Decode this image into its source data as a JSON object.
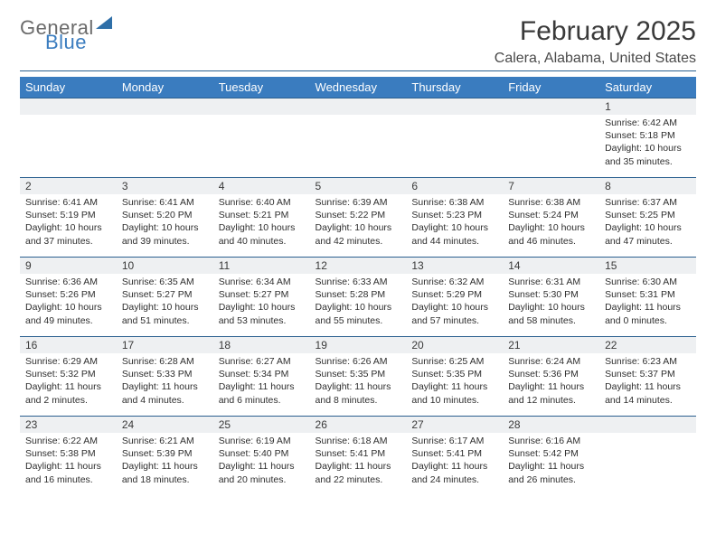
{
  "brand": {
    "line1": "General",
    "line2": "Blue"
  },
  "title": "February 2025",
  "location": "Calera, Alabama, United States",
  "colors": {
    "header_bg": "#3a7cbf",
    "header_text": "#ffffff",
    "rule": "#2a5f8f",
    "daynum_bg": "#eef0f2",
    "text": "#2e2e2e",
    "brand_gray": "#6b6b6b",
    "brand_blue": "#3a7cbf"
  },
  "weekdays": [
    "Sunday",
    "Monday",
    "Tuesday",
    "Wednesday",
    "Thursday",
    "Friday",
    "Saturday"
  ],
  "weeks": [
    [
      null,
      null,
      null,
      null,
      null,
      null,
      {
        "n": "1",
        "sunrise": "Sunrise: 6:42 AM",
        "sunset": "Sunset: 5:18 PM",
        "daylight": "Daylight: 10 hours and 35 minutes."
      }
    ],
    [
      {
        "n": "2",
        "sunrise": "Sunrise: 6:41 AM",
        "sunset": "Sunset: 5:19 PM",
        "daylight": "Daylight: 10 hours and 37 minutes."
      },
      {
        "n": "3",
        "sunrise": "Sunrise: 6:41 AM",
        "sunset": "Sunset: 5:20 PM",
        "daylight": "Daylight: 10 hours and 39 minutes."
      },
      {
        "n": "4",
        "sunrise": "Sunrise: 6:40 AM",
        "sunset": "Sunset: 5:21 PM",
        "daylight": "Daylight: 10 hours and 40 minutes."
      },
      {
        "n": "5",
        "sunrise": "Sunrise: 6:39 AM",
        "sunset": "Sunset: 5:22 PM",
        "daylight": "Daylight: 10 hours and 42 minutes."
      },
      {
        "n": "6",
        "sunrise": "Sunrise: 6:38 AM",
        "sunset": "Sunset: 5:23 PM",
        "daylight": "Daylight: 10 hours and 44 minutes."
      },
      {
        "n": "7",
        "sunrise": "Sunrise: 6:38 AM",
        "sunset": "Sunset: 5:24 PM",
        "daylight": "Daylight: 10 hours and 46 minutes."
      },
      {
        "n": "8",
        "sunrise": "Sunrise: 6:37 AM",
        "sunset": "Sunset: 5:25 PM",
        "daylight": "Daylight: 10 hours and 47 minutes."
      }
    ],
    [
      {
        "n": "9",
        "sunrise": "Sunrise: 6:36 AM",
        "sunset": "Sunset: 5:26 PM",
        "daylight": "Daylight: 10 hours and 49 minutes."
      },
      {
        "n": "10",
        "sunrise": "Sunrise: 6:35 AM",
        "sunset": "Sunset: 5:27 PM",
        "daylight": "Daylight: 10 hours and 51 minutes."
      },
      {
        "n": "11",
        "sunrise": "Sunrise: 6:34 AM",
        "sunset": "Sunset: 5:27 PM",
        "daylight": "Daylight: 10 hours and 53 minutes."
      },
      {
        "n": "12",
        "sunrise": "Sunrise: 6:33 AM",
        "sunset": "Sunset: 5:28 PM",
        "daylight": "Daylight: 10 hours and 55 minutes."
      },
      {
        "n": "13",
        "sunrise": "Sunrise: 6:32 AM",
        "sunset": "Sunset: 5:29 PM",
        "daylight": "Daylight: 10 hours and 57 minutes."
      },
      {
        "n": "14",
        "sunrise": "Sunrise: 6:31 AM",
        "sunset": "Sunset: 5:30 PM",
        "daylight": "Daylight: 10 hours and 58 minutes."
      },
      {
        "n": "15",
        "sunrise": "Sunrise: 6:30 AM",
        "sunset": "Sunset: 5:31 PM",
        "daylight": "Daylight: 11 hours and 0 minutes."
      }
    ],
    [
      {
        "n": "16",
        "sunrise": "Sunrise: 6:29 AM",
        "sunset": "Sunset: 5:32 PM",
        "daylight": "Daylight: 11 hours and 2 minutes."
      },
      {
        "n": "17",
        "sunrise": "Sunrise: 6:28 AM",
        "sunset": "Sunset: 5:33 PM",
        "daylight": "Daylight: 11 hours and 4 minutes."
      },
      {
        "n": "18",
        "sunrise": "Sunrise: 6:27 AM",
        "sunset": "Sunset: 5:34 PM",
        "daylight": "Daylight: 11 hours and 6 minutes."
      },
      {
        "n": "19",
        "sunrise": "Sunrise: 6:26 AM",
        "sunset": "Sunset: 5:35 PM",
        "daylight": "Daylight: 11 hours and 8 minutes."
      },
      {
        "n": "20",
        "sunrise": "Sunrise: 6:25 AM",
        "sunset": "Sunset: 5:35 PM",
        "daylight": "Daylight: 11 hours and 10 minutes."
      },
      {
        "n": "21",
        "sunrise": "Sunrise: 6:24 AM",
        "sunset": "Sunset: 5:36 PM",
        "daylight": "Daylight: 11 hours and 12 minutes."
      },
      {
        "n": "22",
        "sunrise": "Sunrise: 6:23 AM",
        "sunset": "Sunset: 5:37 PM",
        "daylight": "Daylight: 11 hours and 14 minutes."
      }
    ],
    [
      {
        "n": "23",
        "sunrise": "Sunrise: 6:22 AM",
        "sunset": "Sunset: 5:38 PM",
        "daylight": "Daylight: 11 hours and 16 minutes."
      },
      {
        "n": "24",
        "sunrise": "Sunrise: 6:21 AM",
        "sunset": "Sunset: 5:39 PM",
        "daylight": "Daylight: 11 hours and 18 minutes."
      },
      {
        "n": "25",
        "sunrise": "Sunrise: 6:19 AM",
        "sunset": "Sunset: 5:40 PM",
        "daylight": "Daylight: 11 hours and 20 minutes."
      },
      {
        "n": "26",
        "sunrise": "Sunrise: 6:18 AM",
        "sunset": "Sunset: 5:41 PM",
        "daylight": "Daylight: 11 hours and 22 minutes."
      },
      {
        "n": "27",
        "sunrise": "Sunrise: 6:17 AM",
        "sunset": "Sunset: 5:41 PM",
        "daylight": "Daylight: 11 hours and 24 minutes."
      },
      {
        "n": "28",
        "sunrise": "Sunrise: 6:16 AM",
        "sunset": "Sunset: 5:42 PM",
        "daylight": "Daylight: 11 hours and 26 minutes."
      },
      null
    ]
  ]
}
